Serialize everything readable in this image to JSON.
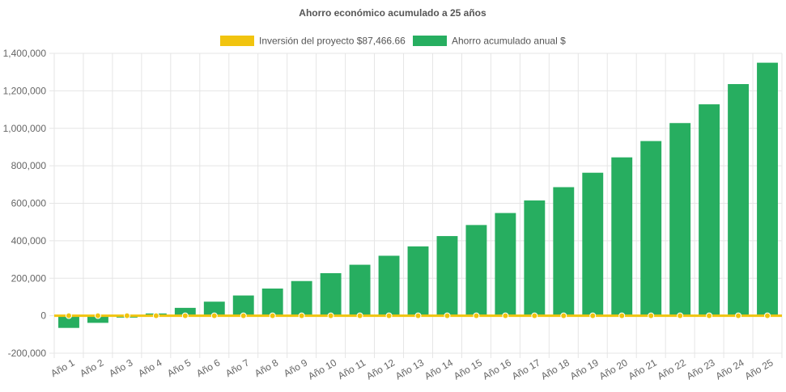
{
  "chart_data": {
    "type": "bar",
    "title": "Ahorro económico acumulado a 25 años",
    "xlabel": "",
    "ylabel": "",
    "ylim": [
      -200000,
      1400000
    ],
    "y_ticks": [
      -200000,
      0,
      200000,
      400000,
      600000,
      800000,
      1000000,
      1200000,
      1400000
    ],
    "y_tick_labels": [
      "-200,000",
      "0",
      "200,000",
      "400,000",
      "600,000",
      "800,000",
      "1,000,000",
      "1,200,000",
      "1,400,000"
    ],
    "grid": true,
    "legend_position": "top-center",
    "categories": [
      "Año 1",
      "Año 2",
      "Año 3",
      "Año 4",
      "Año 5",
      "Año 6",
      "Año 7",
      "Año 8",
      "Año 9",
      "Año 10",
      "Año 11",
      "Año 12",
      "Año 13",
      "Año 14",
      "Año 15",
      "Año 16",
      "Año 17",
      "Año 18",
      "Año 19",
      "Año 20",
      "Año 21",
      "Año 22",
      "Año 23",
      "Año 24",
      "Año 25"
    ],
    "series": [
      {
        "name": "Inversión del proyecto $87,466.66",
        "kind": "line",
        "color": "#f1c40f",
        "values": [
          0,
          0,
          0,
          0,
          0,
          0,
          0,
          0,
          0,
          0,
          0,
          0,
          0,
          0,
          0,
          0,
          0,
          0,
          0,
          0,
          0,
          0,
          0,
          0,
          0
        ]
      },
      {
        "name": "Ahorro acumulado anual $",
        "kind": "bar",
        "color": "#27ae60",
        "values": [
          -65000,
          -38000,
          -10000,
          12000,
          42000,
          75000,
          108000,
          145000,
          185000,
          227000,
          272000,
          320000,
          370000,
          425000,
          484000,
          548000,
          615000,
          686000,
          763000,
          845000,
          932000,
          1028000,
          1128000,
          1236000,
          1350000
        ]
      }
    ]
  }
}
